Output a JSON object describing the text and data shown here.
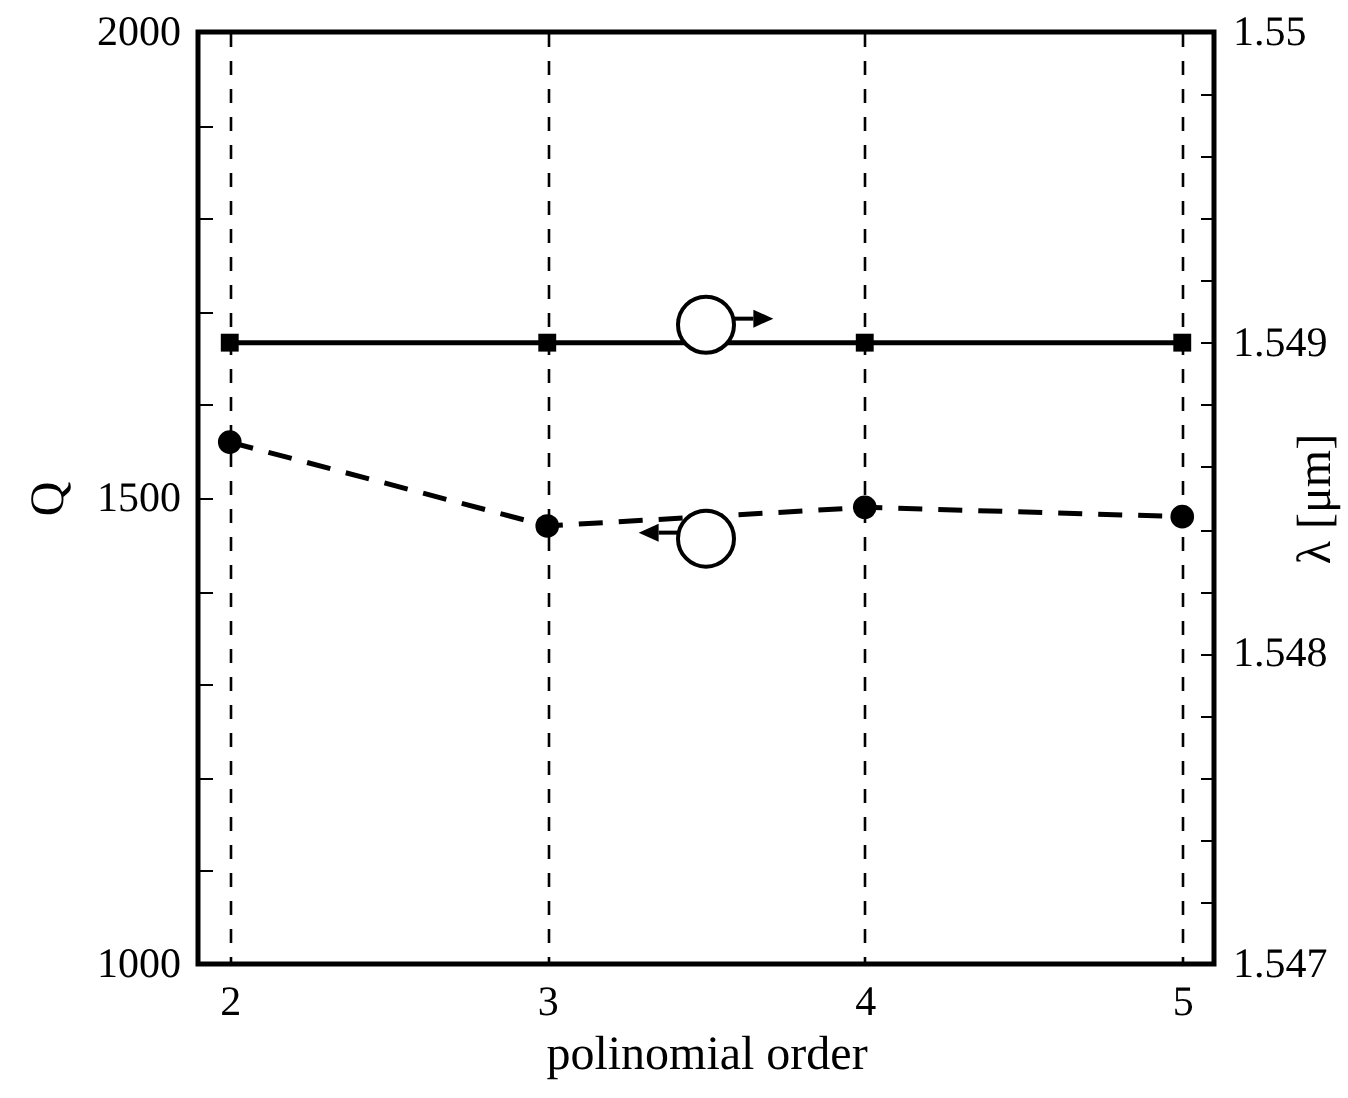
{
  "chart_data": {
    "type": "line",
    "xlabel": "polinomial order",
    "ylabel": "Q",
    "y2label": "λ [μm]",
    "x": [
      2,
      3,
      4,
      5
    ],
    "xlim": [
      1.9,
      5.1
    ],
    "xticks": [
      2,
      3,
      4,
      5
    ],
    "ylim": [
      1000,
      2000
    ],
    "yticks": [
      1000,
      {
        "value": 1100,
        "label": null
      },
      {
        "value": 1200,
        "label": null
      },
      {
        "value": 1300,
        "label": null
      },
      {
        "value": 1400,
        "label": null
      },
      1500,
      {
        "value": 1600,
        "label": null
      },
      {
        "value": 1700,
        "label": null
      },
      {
        "value": 1800,
        "label": null
      },
      {
        "value": 1900,
        "label": null
      },
      2000
    ],
    "y2lim": [
      1.547,
      1.55
    ],
    "y2ticks": [
      1.547,
      {
        "value": 1.5472,
        "label": null
      },
      {
        "value": 1.5474,
        "label": null
      },
      {
        "value": 1.5476,
        "label": null
      },
      {
        "value": 1.5478,
        "label": null
      },
      1.548,
      {
        "value": 1.5482,
        "label": null
      },
      {
        "value": 1.5484,
        "label": null
      },
      {
        "value": 1.5486,
        "label": null
      },
      {
        "value": 1.5488,
        "label": null
      },
      1.549,
      {
        "value": 1.5492,
        "label": null
      },
      {
        "value": 1.5494,
        "label": null
      },
      {
        "value": 1.5496,
        "label": null
      },
      {
        "value": 1.5498,
        "label": null
      },
      1.55
    ],
    "grid": "x",
    "series": [
      {
        "color": "#000000",
        "values": [
          1560,
          1470,
          1490,
          1480
        ],
        "marker": "circle",
        "line_style": "dashed"
      },
      {
        "color": "#000000",
        "values": [
          1.549,
          1.549,
          1.549,
          1.549
        ],
        "axis": "y2",
        "marker": "square",
        "line_style": "solid"
      }
    ]
  }
}
